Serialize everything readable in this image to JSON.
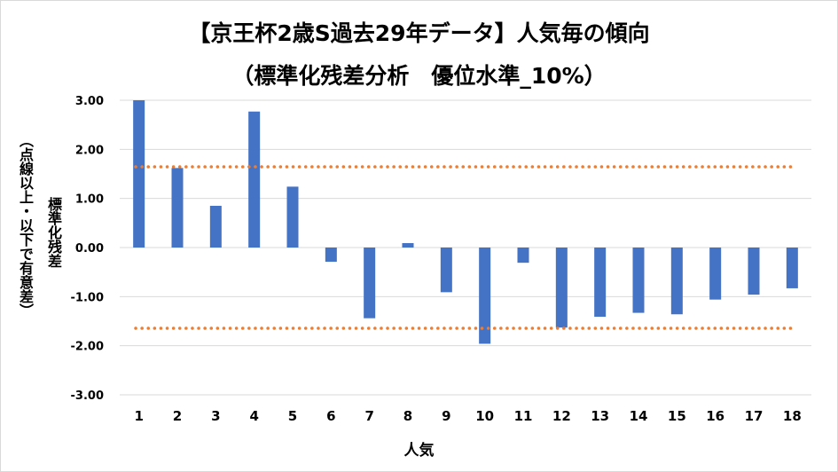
{
  "chart_data": {
    "type": "bar",
    "title": "【京王杯2歳S過去29年データ】人気毎の傾向",
    "subtitle": "（標準化残差分析　優位水準_10%）",
    "xlabel": "人気",
    "ylabel": "標準化残差",
    "ylabel_note": "（点線以上・以下で有意差）",
    "categories": [
      "1",
      "2",
      "3",
      "4",
      "5",
      "6",
      "7",
      "8",
      "9",
      "10",
      "11",
      "12",
      "13",
      "14",
      "15",
      "16",
      "17",
      "18"
    ],
    "values": [
      3.0,
      1.62,
      0.85,
      2.77,
      1.24,
      -0.29,
      -1.44,
      0.09,
      -0.91,
      -1.96,
      -0.31,
      -1.63,
      -1.41,
      -1.33,
      -1.36,
      -1.06,
      -0.96,
      -0.83
    ],
    "ylim": [
      -3.0,
      3.0
    ],
    "ytick_labels": [
      "3.00",
      "2.00",
      "1.00",
      "0.00",
      "-1.00",
      "-2.00",
      "-3.00"
    ],
    "threshold_lines": [
      1.645,
      -1.645
    ],
    "grid": true,
    "colors": {
      "bar": "#4472c4",
      "threshold": "#ed7d31",
      "grid": "#d9d9d9"
    }
  }
}
